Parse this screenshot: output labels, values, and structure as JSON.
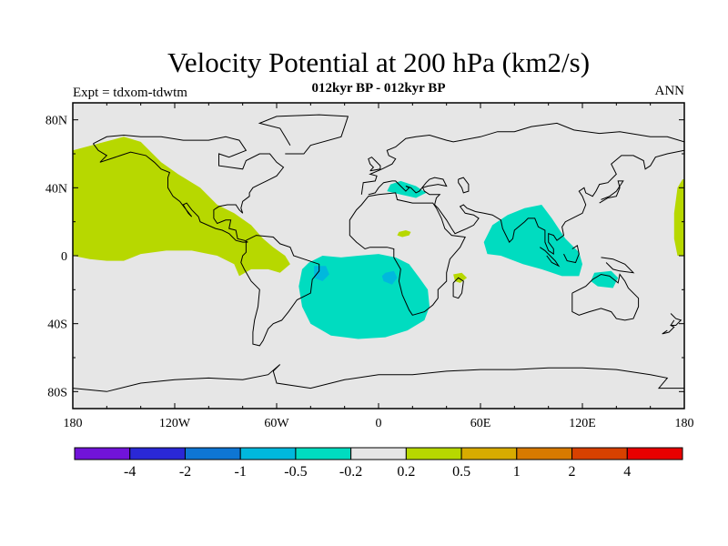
{
  "header": {
    "title": "Velocity Potential at 200 hPa (km2/s)",
    "subtitle": "012kyr BP - 012kyr BP",
    "left_label": "Expt = tdxom-tdwtm",
    "right_label": "ANN"
  },
  "chart_data": {
    "type": "heatmap",
    "projection": "cylindrical-equidistant",
    "lon_range": [
      -180,
      180
    ],
    "lat_range": [
      -90,
      90
    ],
    "x_ticks": [
      {
        "lon": -180,
        "label": "180"
      },
      {
        "lon": -120,
        "label": "120W"
      },
      {
        "lon": -60,
        "label": "60W"
      },
      {
        "lon": 0,
        "label": "0"
      },
      {
        "lon": 60,
        "label": "60E"
      },
      {
        "lon": 120,
        "label": "120E"
      },
      {
        "lon": 180,
        "label": "180"
      }
    ],
    "y_ticks": [
      {
        "lat": 80,
        "label": "80N"
      },
      {
        "lat": 40,
        "label": "40N"
      },
      {
        "lat": 0,
        "label": "0"
      },
      {
        "lat": -40,
        "label": "40S"
      },
      {
        "lat": -80,
        "label": "80S"
      }
    ],
    "colorbar": {
      "colors": [
        "#7113d9",
        "#2a28d6",
        "#0e76d4",
        "#00b8dd",
        "#00dcc0",
        "#e6e6e6",
        "#b7d800",
        "#d8ab00",
        "#d87a00",
        "#d84100",
        "#e80000"
      ],
      "labels": [
        {
          "boundary": 1,
          "label": "-4"
        },
        {
          "boundary": 2,
          "label": "-2"
        },
        {
          "boundary": 3,
          "label": "-1"
        },
        {
          "boundary": 4,
          "label": "-0.5"
        },
        {
          "boundary": 5,
          "label": "-0.2"
        },
        {
          "boundary": 6,
          "label": "0.2"
        },
        {
          "boundary": 7,
          "label": "0.5"
        },
        {
          "boundary": 8,
          "label": "1"
        },
        {
          "boundary": 9,
          "label": "2"
        },
        {
          "boundary": 10,
          "label": "4"
        }
      ]
    },
    "background_color": "#e6e6e6",
    "regions": [
      {
        "level": "0.2 to 0.5",
        "color": "#b7d800",
        "area": "North Pacific / western North America",
        "lonlat": [
          [
            -180,
            62
          ],
          [
            -165,
            66
          ],
          [
            -150,
            70
          ],
          [
            -140,
            67
          ],
          [
            -128,
            55
          ],
          [
            -118,
            48
          ],
          [
            -105,
            40
          ],
          [
            -95,
            30
          ],
          [
            -85,
            25
          ],
          [
            -75,
            18
          ],
          [
            -68,
            10
          ],
          [
            -62,
            5
          ],
          [
            -55,
            0
          ],
          [
            -52,
            -5
          ],
          [
            -58,
            -10
          ],
          [
            -65,
            -8
          ],
          [
            -75,
            -8
          ],
          [
            -82,
            -12
          ],
          [
            -85,
            -5
          ],
          [
            -95,
            0
          ],
          [
            -110,
            3
          ],
          [
            -125,
            3
          ],
          [
            -140,
            1
          ],
          [
            -150,
            -3
          ],
          [
            -160,
            -3
          ],
          [
            -170,
            -2
          ],
          [
            -180,
            0
          ]
        ]
      },
      {
        "level": "0.2 to 0.5",
        "color": "#b7d800",
        "area": "Far western Pacific edge",
        "lonlat": [
          [
            180,
            0
          ],
          [
            176,
            0
          ],
          [
            174,
            10
          ],
          [
            174,
            25
          ],
          [
            176,
            40
          ],
          [
            179,
            45
          ],
          [
            180,
            45
          ]
        ]
      },
      {
        "level": "0.2 to 0.5",
        "color": "#b7d800",
        "area": "North Africa",
        "lonlat": [
          [
            12,
            14
          ],
          [
            16,
            15
          ],
          [
            19,
            14
          ],
          [
            18,
            12
          ],
          [
            14,
            11
          ],
          [
            11,
            12
          ]
        ]
      },
      {
        "level": "0.2 to 0.5",
        "color": "#b7d800",
        "area": "Madagascar",
        "lonlat": [
          [
            44,
            -11
          ],
          [
            49,
            -10
          ],
          [
            52,
            -13
          ],
          [
            48,
            -16
          ],
          [
            45,
            -15
          ]
        ]
      },
      {
        "level": "-0.5 to -0.2",
        "color": "#00dcc0",
        "area": "South Atlantic / Southern Africa",
        "lonlat": [
          [
            -41,
            -4
          ],
          [
            -33,
            0
          ],
          [
            -22,
            -1
          ],
          [
            -12,
            0
          ],
          [
            0,
            1
          ],
          [
            10,
            -1
          ],
          [
            18,
            -5
          ],
          [
            24,
            -13
          ],
          [
            29,
            -20
          ],
          [
            30,
            -30
          ],
          [
            27,
            -38
          ],
          [
            17,
            -44
          ],
          [
            4,
            -48
          ],
          [
            -12,
            -49
          ],
          [
            -28,
            -47
          ],
          [
            -40,
            -40
          ],
          [
            -45,
            -30
          ],
          [
            -47,
            -18
          ],
          [
            -45,
            -8
          ]
        ]
      },
      {
        "level": "-0.5 to -0.2",
        "color": "#00dcc0",
        "area": "Mediterranean",
        "lonlat": [
          [
            7,
            42
          ],
          [
            13,
            44
          ],
          [
            22,
            41
          ],
          [
            28,
            37
          ],
          [
            22,
            34
          ],
          [
            13,
            36
          ],
          [
            5,
            38
          ]
        ]
      },
      {
        "level": "-0.5 to -0.2",
        "color": "#00dcc0",
        "area": "Indian Ocean / South Asia",
        "lonlat": [
          [
            67,
            18
          ],
          [
            76,
            24
          ],
          [
            86,
            28
          ],
          [
            96,
            30
          ],
          [
            102,
            22
          ],
          [
            110,
            10
          ],
          [
            118,
            2
          ],
          [
            120,
            -5
          ],
          [
            118,
            -12
          ],
          [
            108,
            -12
          ],
          [
            96,
            -8
          ],
          [
            85,
            -5
          ],
          [
            72,
            0
          ],
          [
            64,
            1
          ],
          [
            62,
            8
          ]
        ]
      },
      {
        "level": "-0.5 to -0.2",
        "color": "#00dcc0",
        "area": "Northern Australia",
        "lonlat": [
          [
            127,
            -10
          ],
          [
            137,
            -9
          ],
          [
            141,
            -13
          ],
          [
            138,
            -19
          ],
          [
            129,
            -18
          ],
          [
            125,
            -15
          ]
        ]
      },
      {
        "level": "-1 to -0.5",
        "color": "#00b8dd",
        "area": "Brazil coast",
        "lonlat": [
          [
            -38,
            -6
          ],
          [
            -31,
            -6
          ],
          [
            -29,
            -11
          ],
          [
            -33,
            -15
          ],
          [
            -38,
            -13
          ]
        ]
      },
      {
        "level": "-1 to -0.5",
        "color": "#00b8dd",
        "area": "Gulf of Guinea / Angola",
        "lonlat": [
          [
            4,
            -10
          ],
          [
            9,
            -9
          ],
          [
            11,
            -13
          ],
          [
            8,
            -17
          ],
          [
            3,
            -15
          ],
          [
            2,
            -12
          ]
        ]
      }
    ]
  }
}
